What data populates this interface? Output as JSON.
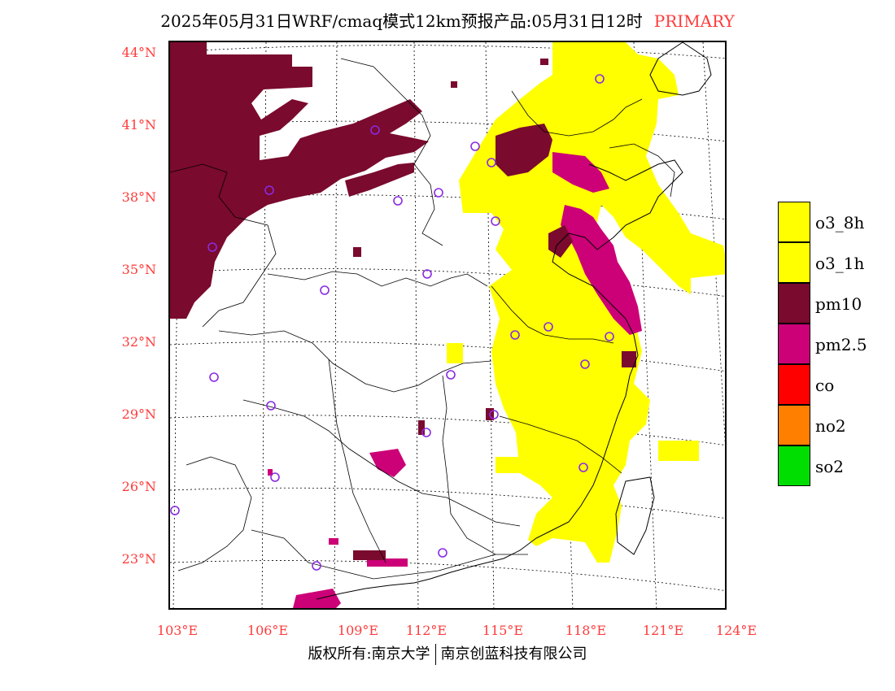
{
  "header": {
    "title": "2025年05月31日WRF/cmaq模式12km预报产品:05月31日12时",
    "tag": "PRIMARY"
  },
  "axes": {
    "lat_labels": [
      "44°N",
      "41°N",
      "38°N",
      "35°N",
      "32°N",
      "29°N",
      "26°N",
      "23°N"
    ],
    "lon_labels": [
      "103°E",
      "106°E",
      "109°E",
      "112°E",
      "115°E",
      "118°E",
      "121°E",
      "124°E"
    ]
  },
  "legend": {
    "items": [
      {
        "label": "o3_8h",
        "color": "#ffff00"
      },
      {
        "label": "o3_1h",
        "color": "#ffff00"
      },
      {
        "label": "pm10",
        "color": "#7a0a2e"
      },
      {
        "label": "pm2.5",
        "color": "#cc0077"
      },
      {
        "label": "co",
        "color": "#ff0000"
      },
      {
        "label": "no2",
        "color": "#ff7f00"
      },
      {
        "label": "so2",
        "color": "#00dd00"
      }
    ]
  },
  "colors": {
    "accent_red": "#ff3b3b",
    "station_circle": "#8a2be2",
    "boundary": "#000000",
    "grid": "#000000"
  },
  "footer": {
    "left": "版权所有:南京大学",
    "right": "南京创蓝科技有限公司"
  }
}
